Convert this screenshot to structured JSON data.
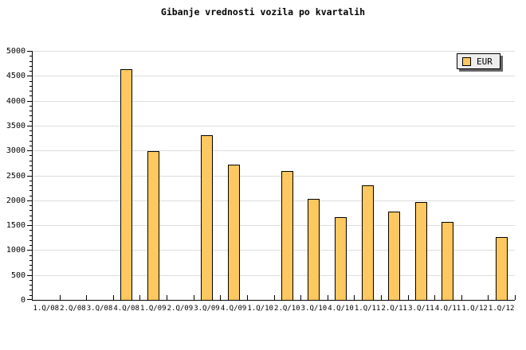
{
  "title": "Gibanje vrednosti vozila po kvartalih",
  "legend": {
    "label": "EUR",
    "position": "top-right"
  },
  "colors": {
    "background": "#FFFFFF",
    "bar_fill": "#FDC85F",
    "bar_border": "#000000",
    "gridline": "#DDDDDD",
    "axis": "#000000",
    "text": "#000000",
    "legend_bg": "#EDEDED",
    "legend_border": "#000000",
    "legend_shadow": "#666666"
  },
  "chart_data": {
    "type": "bar",
    "title": "Gibanje vrednosti vozila po kvartalih",
    "xlabel": "",
    "ylabel": "",
    "categories": [
      "1.Q/08",
      "2.Q/08",
      "3.Q/08",
      "4.Q/08",
      "1.Q/09",
      "2.Q/09",
      "3.Q/09",
      "4.Q/09",
      "1.Q/10",
      "2.Q/10",
      "3.Q/10",
      "4.Q/10",
      "1.Q/11",
      "2.Q/11",
      "3.Q/11",
      "4.Q/11",
      "1.Q/12",
      "1.Q/12"
    ],
    "series": [
      {
        "name": "EUR",
        "values": [
          null,
          null,
          null,
          4630,
          2990,
          null,
          3300,
          2710,
          null,
          2580,
          2030,
          1660,
          2300,
          1780,
          1970,
          1570,
          null,
          1260
        ]
      }
    ],
    "ylim": [
      0,
      5000
    ],
    "y_major_step": 500,
    "y_minor_step": 100,
    "grid": "horizontal-major",
    "legend_position": "top-right"
  }
}
